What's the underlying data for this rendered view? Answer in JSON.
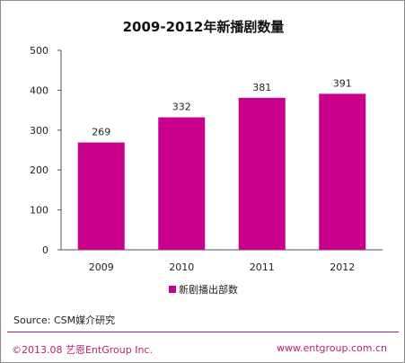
{
  "chart_data": {
    "type": "bar",
    "title": "2009-2012年新播剧数量",
    "categories": [
      "2009",
      "2010",
      "2011",
      "2012"
    ],
    "series": [
      {
        "name": "新剧播出部数",
        "values": [
          269,
          332,
          381,
          391
        ]
      }
    ],
    "ylim": [
      0,
      500
    ],
    "yticks": [
      0,
      100,
      200,
      300,
      400,
      500
    ],
    "grid": false,
    "legend": "bottom-center",
    "bar_color": "#c8008c"
  },
  "footer": {
    "source": "Source: CSM媒介研究",
    "copyright": "©2013.08  艺恩EntGroup Inc.",
    "website": "www.entgroup.com.cn"
  }
}
